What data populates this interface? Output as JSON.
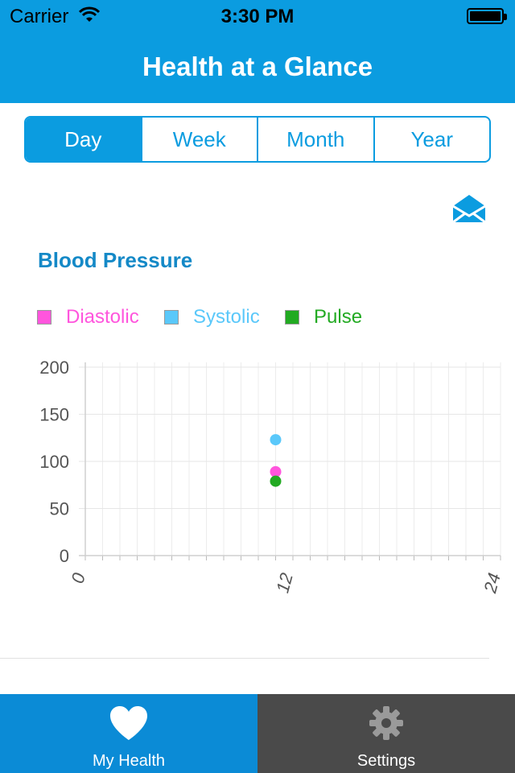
{
  "status_bar": {
    "carrier": "Carrier",
    "time": "3:30 PM"
  },
  "nav": {
    "title": "Health at a Glance"
  },
  "segmented": {
    "items": [
      "Day",
      "Week",
      "Month",
      "Year"
    ],
    "selected": "Day"
  },
  "section": {
    "title": "Blood Pressure"
  },
  "legend": [
    {
      "label": "Diastolic",
      "color": "#ff55dd"
    },
    {
      "label": "Systolic",
      "color": "#5ac8fa"
    },
    {
      "label": "Pulse",
      "color": "#22aa22"
    }
  ],
  "chart_data": {
    "type": "scatter",
    "title": "",
    "xlabel": "",
    "ylabel": "",
    "xlim": [
      0,
      24
    ],
    "ylim": [
      0,
      200
    ],
    "yticks": [
      0,
      50,
      100,
      150,
      200
    ],
    "xtick_labels": [
      "0",
      "12",
      "24"
    ],
    "grid": true,
    "series": [
      {
        "name": "Diastolic",
        "color": "#ff55dd",
        "points": [
          [
            11,
            89
          ]
        ]
      },
      {
        "name": "Systolic",
        "color": "#5ac8fa",
        "points": [
          [
            11,
            123
          ]
        ]
      },
      {
        "name": "Pulse",
        "color": "#22aa22",
        "points": [
          [
            11,
            79
          ]
        ]
      }
    ]
  },
  "tabbar": {
    "tabs": [
      {
        "label": "My Health",
        "icon": "heart-icon"
      },
      {
        "label": "Settings",
        "icon": "gear-icon"
      }
    ]
  }
}
